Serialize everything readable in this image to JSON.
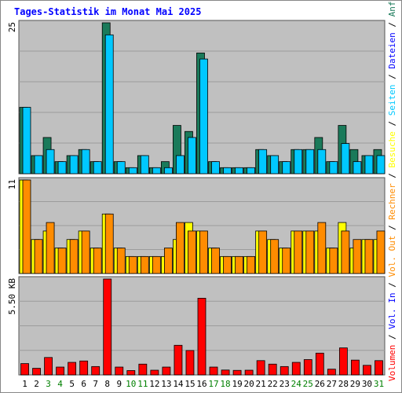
{
  "chart_data": {
    "type": "bar",
    "title": "Tages-Statistik im Monat Mai 2025",
    "days": [
      "1",
      "2",
      "3",
      "4",
      "5",
      "6",
      "7",
      "8",
      "9",
      "10",
      "11",
      "12",
      "13",
      "14",
      "15",
      "16",
      "17",
      "18",
      "19",
      "20",
      "21",
      "22",
      "23",
      "24",
      "25",
      "26",
      "27",
      "28",
      "29",
      "30",
      "31"
    ],
    "weekend_days": [
      "3",
      "4",
      "10",
      "11",
      "17",
      "18",
      "24",
      "25",
      "31"
    ],
    "panels": [
      {
        "id": "hits",
        "ymax": 25,
        "ymax_label": "25",
        "series": [
          {
            "name": "Anfragen",
            "color": "#1a7a5a",
            "values": [
              11,
              3,
              6,
              2,
              3,
              4,
              2,
              25,
              2,
              1,
              3,
              1,
              2,
              8,
              7,
              20,
              2,
              1,
              1,
              1,
              4,
              3,
              2,
              4,
              4,
              6,
              2,
              8,
              4,
              3,
              4
            ]
          },
          {
            "name": "Dateien",
            "color": "#0000ff",
            "values": [
              11,
              3,
              4,
              2,
              3,
              4,
              2,
              23,
              2,
              1,
              3,
              1,
              1,
              3,
              6,
              19,
              2,
              1,
              1,
              1,
              4,
              3,
              2,
              4,
              4,
              4,
              2,
              5,
              2,
              3,
              3
            ]
          },
          {
            "name": "Seiten",
            "color": "#00c8ff",
            "values": [
              11,
              3,
              4,
              2,
              3,
              4,
              2,
              23,
              2,
              1,
              3,
              1,
              1,
              3,
              6,
              19,
              2,
              1,
              1,
              1,
              4,
              3,
              2,
              4,
              4,
              4,
              2,
              5,
              2,
              3,
              3
            ]
          }
        ]
      },
      {
        "id": "visits",
        "ymax": 11,
        "ymax_label": "11",
        "series": [
          {
            "name": "Besuche",
            "color": "#ffff00",
            "values": [
              11,
              4,
              5,
              3,
              4,
              5,
              3,
              7,
              3,
              2,
              2,
              2,
              2,
              4,
              6,
              5,
              3,
              2,
              2,
              2,
              5,
              4,
              3,
              5,
              5,
              5,
              3,
              6,
              3,
              4,
              4
            ]
          },
          {
            "name": "Rechner",
            "color": "#ff8c00",
            "values": [
              11,
              4,
              6,
              3,
              4,
              5,
              3,
              7,
              3,
              2,
              2,
              2,
              3,
              6,
              5,
              5,
              3,
              2,
              2,
              2,
              5,
              4,
              3,
              5,
              5,
              6,
              3,
              5,
              4,
              4,
              5
            ]
          }
        ]
      },
      {
        "id": "volume",
        "ymax": 5.5,
        "ymax_label": "5.50 KB",
        "series": [
          {
            "name": "Volumen",
            "color": "#ff0000",
            "values": [
              0.65,
              0.38,
              1.0,
              0.45,
              0.72,
              0.8,
              0.48,
              5.5,
              0.45,
              0.25,
              0.62,
              0.27,
              0.45,
              1.7,
              1.4,
              4.4,
              0.45,
              0.28,
              0.26,
              0.27,
              0.82,
              0.62,
              0.48,
              0.72,
              0.88,
              1.25,
              0.33,
              1.55,
              0.85,
              0.55,
              0.82
            ]
          }
        ]
      }
    ],
    "legend_right": [
      {
        "text": "Anfragen",
        "color": "#1a7a5a"
      },
      {
        "text": "Dateien",
        "color": "#0000ff"
      },
      {
        "text": "Seiten",
        "color": "#00c8ff"
      },
      {
        "text": "Besuche",
        "color": "#ffff00"
      },
      {
        "text": "Rechner",
        "color": "#ff8c00"
      },
      {
        "text": "Vol. Out",
        "color": "#ff8c00"
      },
      {
        "text": "Vol. In",
        "color": "#0000ff"
      },
      {
        "text": "Volumen",
        "color": "#ff0000"
      }
    ]
  },
  "colors": {
    "background": "#ffffff",
    "plot_background": "#c0c0c0",
    "grid": "#9c9c9c",
    "title": "#0000ff",
    "weekday_label": "#000000",
    "weekend_label": "#008000",
    "separator": "#555555"
  }
}
